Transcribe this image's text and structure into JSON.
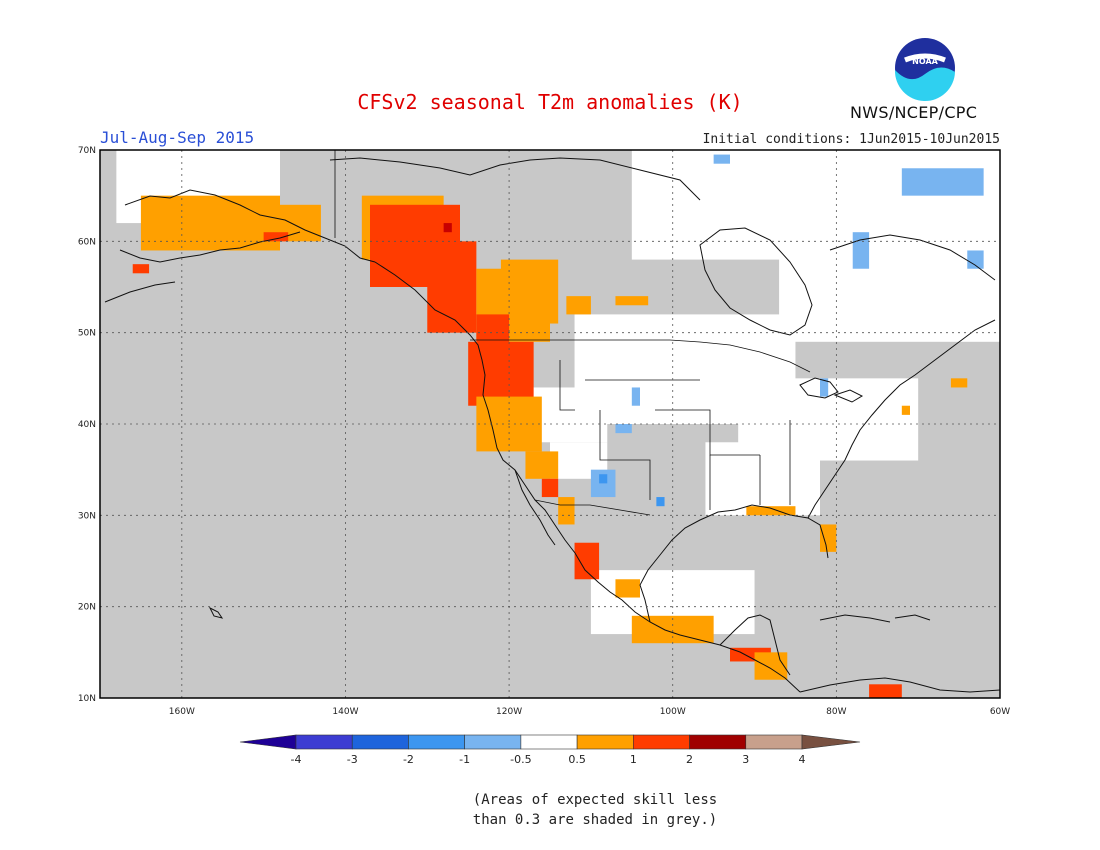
{
  "title": "CFSv2 seasonal T2m anomalies (K)",
  "period": "Jul-Aug-Sep 2015",
  "initial_conditions": "Initial conditions: 1Jun2015-10Jun2015",
  "agency": "NWS/NCEP/CPC",
  "logo_text": "NOAA",
  "lat_labels": [
    "70N",
    "60N",
    "50N",
    "40N",
    "30N",
    "20N",
    "10N"
  ],
  "lon_labels": [
    "160W",
    "140W",
    "120W",
    "100W",
    "80W",
    "60W"
  ],
  "colorbar": {
    "labels": [
      "-4",
      "-3",
      "-2",
      "-1",
      "-0.5",
      "0.5",
      "1",
      "2",
      "3",
      "4"
    ],
    "colors": [
      "#1e0096",
      "#3c3cd2",
      "#1e64dc",
      "#3c96f0",
      "#78b4f0",
      "#ffffff",
      "#ffa000",
      "#ff3c00",
      "#a00000",
      "#c8a08c",
      "#785040"
    ]
  },
  "note_line1": "(Areas of expected skill less",
  "note_line2": "than 0.3 are shaded in grey.)",
  "colors": {
    "grey_mask": "#c8c8c8",
    "positive_small": "#ffa000",
    "positive_medium": "#ff3c00",
    "positive_large": "#c80000",
    "negative_small": "#78b4f0",
    "negative_medium": "#3c96f0"
  }
}
